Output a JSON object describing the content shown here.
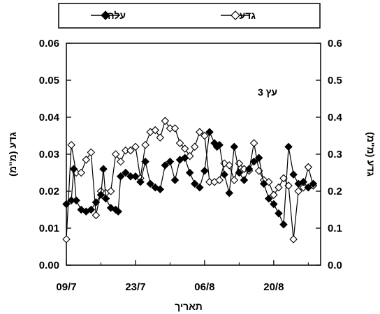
{
  "chart_data": {
    "type": "line",
    "title": "",
    "annotation": "עץ 3",
    "xlabel": "תאריך",
    "ylabel_left": "גדע (מ\"מ)",
    "ylabel_right": "גדע (מ\"מ)",
    "x_tick_labels": [
      "09/7",
      "23/7",
      "06/8",
      "20/8"
    ],
    "x_tick_days": [
      0,
      14,
      28,
      42
    ],
    "xlim_days": [
      0,
      51.5
    ],
    "y_left": {
      "ylim": [
        0,
        0.06
      ],
      "ticks": [
        "0.00",
        "0.01",
        "0.02",
        "0.03",
        "0.04",
        "0.05",
        "0.06"
      ],
      "tick_values": [
        0,
        0.01,
        0.02,
        0.03,
        0.04,
        0.05,
        0.06
      ]
    },
    "y_right": {
      "ylim": [
        0,
        0.6
      ],
      "ticks": [
        "0.0",
        "0.1",
        "0.2",
        "0.3",
        "0.4",
        "0.5",
        "0.6"
      ],
      "tick_values": [
        0,
        0.1,
        0.2,
        0.3,
        0.4,
        0.5,
        0.6
      ]
    },
    "grid": false,
    "legend_position": "top",
    "series": [
      {
        "name": "עלה",
        "axis": "left",
        "marker": "filled-diamond",
        "color": "#000000",
        "x": [
          0,
          1,
          1.5,
          2,
          3,
          4,
          5,
          6,
          7,
          7.5,
          8,
          9,
          10,
          10.5,
          11,
          12,
          13,
          14,
          15,
          16,
          17,
          18,
          19,
          20,
          21,
          22,
          23,
          24,
          25,
          26,
          27,
          28,
          29,
          30,
          30.5,
          31,
          32,
          33,
          34,
          35,
          36,
          37,
          38,
          39,
          40,
          41,
          42,
          43,
          44,
          45,
          46,
          47,
          48,
          49,
          50
        ],
        "y": [
          0.0165,
          0.0175,
          0.026,
          0.0175,
          0.015,
          0.0145,
          0.015,
          0.017,
          0.019,
          0.026,
          0.018,
          0.0155,
          0.015,
          0.0145,
          0.024,
          0.025,
          0.024,
          0.024,
          0.0225,
          0.028,
          0.022,
          0.021,
          0.0205,
          0.027,
          0.028,
          0.023,
          0.0285,
          0.029,
          0.025,
          0.022,
          0.021,
          0.0255,
          0.036,
          0.033,
          0.032,
          0.0325,
          0.0245,
          0.0195,
          0.032,
          0.025,
          0.023,
          0.026,
          0.028,
          0.029,
          0.022,
          0.018,
          0.0165,
          0.014,
          0.011,
          0.032,
          0.0245,
          0.022,
          0.0225,
          0.021,
          0.022
        ]
      },
      {
        "name": "גדע",
        "axis": "right",
        "marker": "open-diamond",
        "color": "#000000",
        "x": [
          0,
          1,
          2,
          3,
          4,
          5,
          6,
          7,
          8,
          9,
          10,
          11,
          12,
          13,
          14,
          15,
          16,
          17,
          18,
          19,
          20,
          21,
          22,
          23,
          24,
          25,
          26,
          27,
          28,
          29,
          30,
          31,
          32,
          33,
          34,
          35,
          36,
          37,
          38,
          39,
          40,
          41,
          42,
          43,
          44,
          45,
          46,
          47,
          48,
          49,
          50
        ],
        "y": [
          0.07,
          0.325,
          0.25,
          0.25,
          0.285,
          0.305,
          0.135,
          0.2,
          0.195,
          0.2,
          0.3,
          0.28,
          0.31,
          0.31,
          0.32,
          0.235,
          0.325,
          0.36,
          0.365,
          0.345,
          0.39,
          0.37,
          0.37,
          0.33,
          0.315,
          0.295,
          0.32,
          0.36,
          0.35,
          0.225,
          0.225,
          0.23,
          0.275,
          0.27,
          0.23,
          0.275,
          0.26,
          0.255,
          0.33,
          0.255,
          0.23,
          0.225,
          0.19,
          0.21,
          0.235,
          0.215,
          0.07,
          0.2,
          0.21,
          0.265,
          0.215
        ]
      }
    ]
  }
}
